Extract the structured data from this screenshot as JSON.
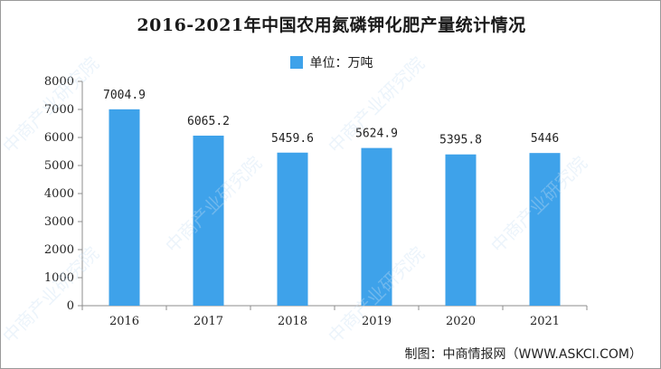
{
  "chart_data": {
    "type": "bar",
    "title": "2016-2021年中国农用氮磷钾化肥产量统计情况",
    "legend": "单位：万吨",
    "categories": [
      "2016",
      "2017",
      "2018",
      "2019",
      "2020",
      "2021"
    ],
    "values": [
      7004.9,
      6065.2,
      5459.6,
      5624.9,
      5395.8,
      5446
    ],
    "value_labels": [
      "7004.9",
      "6065.2",
      "5459.6",
      "5624.9",
      "5395.8",
      "5446"
    ],
    "y_ticks": [
      "0",
      "1000",
      "2000",
      "3000",
      "4000",
      "5000",
      "6000",
      "7000",
      "8000"
    ],
    "ylim": [
      0,
      8000
    ],
    "grid": false,
    "legend_position": "top-center",
    "bar_color": "#3ea2ea"
  },
  "source": "制图：中商情报网（WWW.ASKCI.COM）",
  "watermark": "中商产业研究院"
}
